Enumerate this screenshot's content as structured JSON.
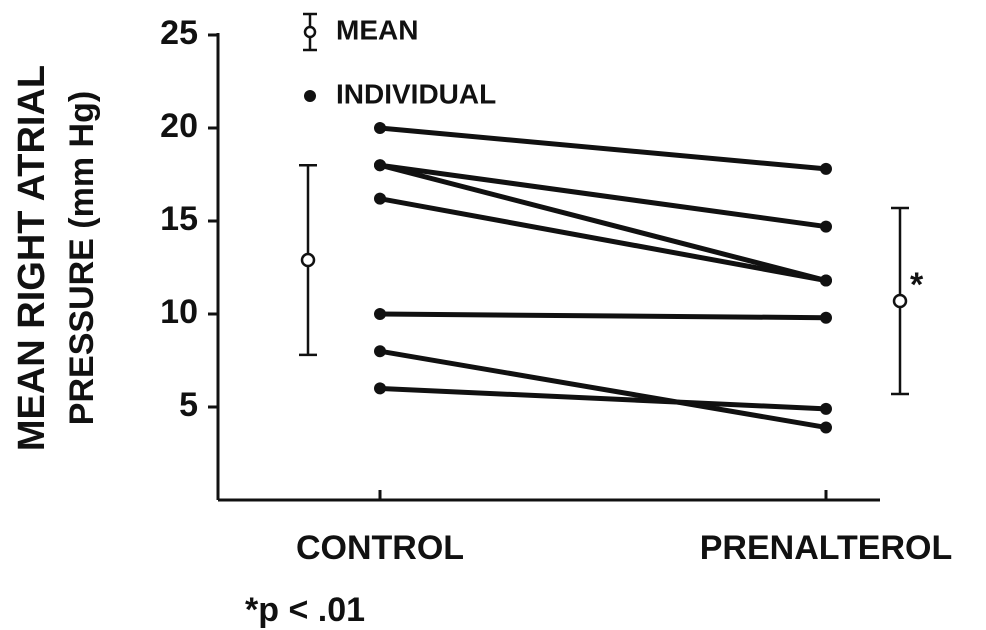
{
  "chart_data": {
    "type": "line",
    "ylabel": [
      "MEAN RIGHT ATRIAL",
      "PRESSURE (mm Hg)"
    ],
    "categories": [
      "CONTROL",
      "PRENALTEROL"
    ],
    "ylim": [
      0,
      25
    ],
    "yticks": [
      5,
      10,
      15,
      20,
      25
    ],
    "color": "#111111",
    "individual": {
      "name": "INDIVIDUAL",
      "lines": [
        [
          20,
          17.8
        ],
        [
          18,
          14.7
        ],
        [
          18,
          11.8
        ],
        [
          16.2,
          11.8
        ],
        [
          10,
          9.8
        ],
        [
          8,
          3.9
        ],
        [
          6,
          4.9
        ]
      ]
    },
    "mean": {
      "name": "MEAN",
      "values": [
        12.9,
        10.7
      ],
      "errors": [
        5.1,
        5.0
      ]
    },
    "annotation": "*",
    "footnote": "*p < .01"
  }
}
